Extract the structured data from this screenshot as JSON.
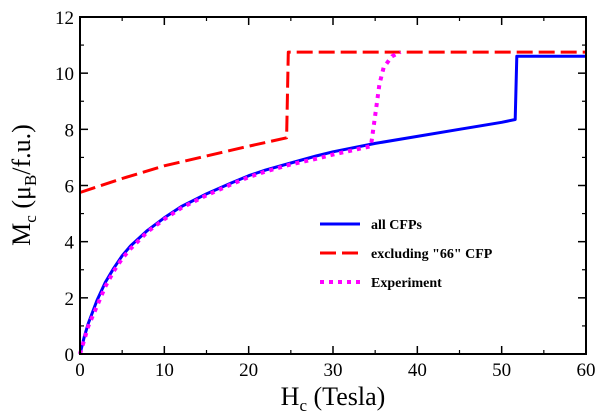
{
  "chart_data": {
    "type": "line",
    "xlabel": {
      "main": "H",
      "sub": "c",
      "rest": " (Tesla)"
    },
    "ylabel": {
      "main": "M",
      "sub1": "c",
      "mid": " (μ",
      "sub2": "B",
      "rest": "/f.u.)"
    },
    "xlim": [
      0,
      60
    ],
    "ylim": [
      0,
      12
    ],
    "xticks": [
      0,
      10,
      20,
      30,
      40,
      50,
      60
    ],
    "yticks": [
      0,
      2,
      4,
      6,
      8,
      10,
      12
    ],
    "grid": false,
    "legend_position": "center-right",
    "series": [
      {
        "name": "all CFPs",
        "color": "#0000ff",
        "style": "solid",
        "x": [
          0,
          0.5,
          1,
          2,
          3,
          4,
          5,
          6,
          8,
          10,
          12,
          15,
          18,
          20,
          22,
          25,
          28,
          30,
          35,
          40,
          45,
          50,
          51.6,
          51.8,
          55,
          60
        ],
        "y": [
          0,
          0.6,
          1.1,
          1.9,
          2.55,
          3.05,
          3.5,
          3.85,
          4.4,
          4.85,
          5.25,
          5.7,
          6.1,
          6.35,
          6.55,
          6.8,
          7.05,
          7.2,
          7.5,
          7.75,
          8.0,
          8.25,
          8.35,
          10.6,
          10.6,
          10.6
        ]
      },
      {
        "name": "excluding \"66\" CFP",
        "color": "#ff0000",
        "style": "dashed",
        "x": [
          0,
          2,
          5,
          10,
          15,
          20,
          24.5,
          24.7,
          30,
          40,
          50,
          60
        ],
        "y": [
          5.75,
          5.95,
          6.25,
          6.7,
          7.05,
          7.4,
          7.7,
          10.75,
          10.75,
          10.75,
          10.75,
          10.75
        ]
      },
      {
        "name": "Experiment",
        "color": "#ff00ff",
        "style": "dotted",
        "x": [
          0,
          1,
          2,
          3,
          4,
          5,
          6,
          8,
          10,
          12,
          15,
          18,
          20,
          22,
          25,
          28,
          30,
          33,
          34.5,
          35,
          35.5,
          36,
          37,
          38
        ],
        "y": [
          0,
          1.0,
          1.7,
          2.4,
          2.95,
          3.4,
          3.75,
          4.35,
          4.8,
          5.2,
          5.65,
          6.05,
          6.3,
          6.5,
          6.75,
          6.95,
          7.1,
          7.3,
          7.4,
          8.5,
          9.6,
          10.2,
          10.6,
          10.75
        ]
      }
    ]
  }
}
